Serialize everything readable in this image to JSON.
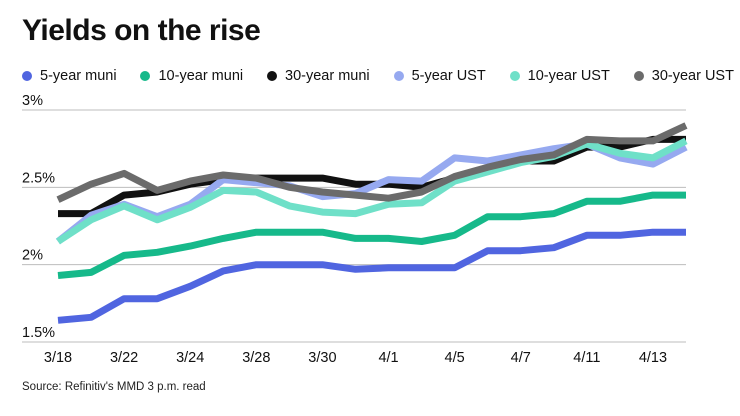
{
  "chart_data": {
    "type": "line",
    "title": "Yields on the rise",
    "source": "Source: Refinitiv's MMD 3 p.m. read",
    "xlabel": "",
    "ylabel": "",
    "ylim": [
      1.5,
      3.0
    ],
    "y_ticks": [
      {
        "value": 3.0,
        "label": "3%"
      },
      {
        "value": 2.5,
        "label": "2.5%"
      },
      {
        "value": 2.0,
        "label": "2%"
      },
      {
        "value": 1.5,
        "label": "1.5%"
      }
    ],
    "x_ticks": [
      {
        "index": 0,
        "label": "3/18"
      },
      {
        "index": 2,
        "label": "3/22"
      },
      {
        "index": 4,
        "label": "3/24"
      },
      {
        "index": 6,
        "label": "3/28"
      },
      {
        "index": 8,
        "label": "3/30"
      },
      {
        "index": 10,
        "label": "4/1"
      },
      {
        "index": 12,
        "label": "4/5"
      },
      {
        "index": 14,
        "label": "4/7"
      },
      {
        "index": 16,
        "label": "4/11"
      },
      {
        "index": 18,
        "label": "4/13"
      }
    ],
    "grid": true,
    "num_points": 20,
    "series": [
      {
        "name": "5-year muni",
        "color": "#5065e0",
        "values": [
          1.64,
          1.66,
          1.78,
          1.78,
          1.86,
          1.96,
          2.0,
          2.0,
          2.0,
          1.97,
          1.98,
          1.98,
          1.98,
          2.09,
          2.09,
          2.11,
          2.19,
          2.19,
          2.21,
          2.21
        ]
      },
      {
        "name": "10-year muni",
        "color": "#16b98a",
        "values": [
          1.93,
          1.95,
          2.06,
          2.08,
          2.12,
          2.17,
          2.21,
          2.21,
          2.21,
          2.17,
          2.17,
          2.15,
          2.19,
          2.31,
          2.31,
          2.33,
          2.41,
          2.41,
          2.45,
          2.45
        ]
      },
      {
        "name": "30-year muni",
        "color": "#111111",
        "values": [
          2.33,
          2.33,
          2.45,
          2.47,
          2.52,
          2.55,
          2.56,
          2.56,
          2.56,
          2.52,
          2.52,
          2.5,
          2.56,
          2.62,
          2.67,
          2.67,
          2.76,
          2.76,
          2.81,
          2.81
        ]
      },
      {
        "name": "5-year UST",
        "color": "#96a9f0",
        "values": [
          2.15,
          2.32,
          2.39,
          2.31,
          2.39,
          2.55,
          2.53,
          2.51,
          2.44,
          2.46,
          2.55,
          2.54,
          2.69,
          2.67,
          2.71,
          2.75,
          2.78,
          2.69,
          2.65,
          2.76
        ]
      },
      {
        "name": "10-year UST",
        "color": "#6fe0c8",
        "values": [
          2.15,
          2.29,
          2.38,
          2.29,
          2.37,
          2.48,
          2.47,
          2.38,
          2.34,
          2.33,
          2.39,
          2.4,
          2.54,
          2.6,
          2.66,
          2.7,
          2.78,
          2.72,
          2.69,
          2.8
        ]
      },
      {
        "name": "30-year UST",
        "color": "#6b6b6b",
        "values": [
          2.42,
          2.52,
          2.59,
          2.48,
          2.54,
          2.58,
          2.56,
          2.5,
          2.47,
          2.45,
          2.43,
          2.47,
          2.57,
          2.63,
          2.68,
          2.71,
          2.81,
          2.8,
          2.8,
          2.9
        ]
      }
    ]
  }
}
